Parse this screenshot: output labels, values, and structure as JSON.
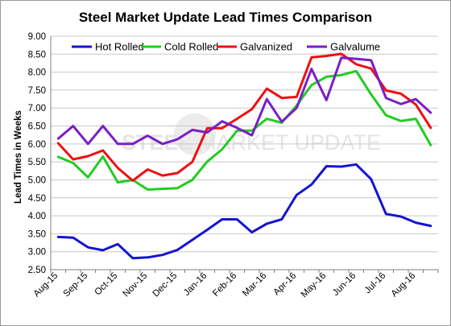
{
  "chart_data": {
    "type": "line",
    "title": "Steel Market Update Lead Times Comparison",
    "xlabel": "",
    "ylabel": "Lead Times in Weeks",
    "ylim": [
      2.5,
      9.0
    ],
    "yticks": [
      "2.50",
      "3.00",
      "3.50",
      "4.00",
      "4.50",
      "5.00",
      "5.50",
      "6.00",
      "6.50",
      "7.00",
      "7.50",
      "8.00",
      "8.50",
      "9.00"
    ],
    "tick_labels": [
      "Aug-15",
      "Sep-15",
      "Oct-15",
      "Nov-15",
      "Dec-15",
      "Jan-16",
      "Feb-16",
      "Mar-16",
      "Apr-16",
      "May-16",
      "Jun-16",
      "Jul-16",
      "Aug-16"
    ],
    "points_per_tick": 2,
    "grid": true,
    "legend": "top-left",
    "watermark": {
      "part1": "STEEL",
      "part2": "MARKET UPDATE"
    },
    "series": [
      {
        "name": "Hot Rolled",
        "color": "#1414d2",
        "values": [
          3.41,
          3.39,
          3.12,
          3.04,
          3.21,
          2.82,
          2.84,
          2.91,
          3.05,
          3.33,
          3.61,
          3.9,
          3.9,
          3.54,
          3.78,
          3.9,
          4.58,
          4.87,
          5.38,
          5.37,
          5.43,
          5.02,
          4.05,
          3.98,
          3.81,
          3.72
        ]
      },
      {
        "name": "Cold Rolled",
        "color": "#22cc22",
        "values": [
          5.64,
          5.47,
          5.07,
          5.65,
          4.93,
          5.0,
          4.73,
          4.75,
          4.77,
          5.0,
          5.51,
          5.85,
          6.37,
          6.37,
          6.7,
          6.59,
          7.07,
          7.64,
          7.87,
          7.92,
          8.03,
          7.38,
          6.8,
          6.64,
          6.7,
          5.97
        ]
      },
      {
        "name": "Galvanized",
        "color": "#ee1010",
        "values": [
          6.02,
          5.57,
          5.66,
          5.82,
          5.33,
          4.98,
          5.29,
          5.12,
          5.19,
          5.5,
          6.44,
          6.44,
          6.7,
          6.97,
          7.54,
          7.28,
          7.31,
          8.41,
          8.45,
          8.51,
          8.22,
          8.1,
          7.49,
          7.4,
          7.1,
          6.45
        ]
      },
      {
        "name": "Galvalume",
        "color": "#7a1fc6",
        "values": [
          6.15,
          6.5,
          6.0,
          6.5,
          6.0,
          6.0,
          6.23,
          6.0,
          6.13,
          6.39,
          6.32,
          6.63,
          6.45,
          6.24,
          7.25,
          6.62,
          7.0,
          8.09,
          7.22,
          8.4,
          8.37,
          8.33,
          7.28,
          7.11,
          7.25,
          6.87
        ]
      }
    ]
  }
}
